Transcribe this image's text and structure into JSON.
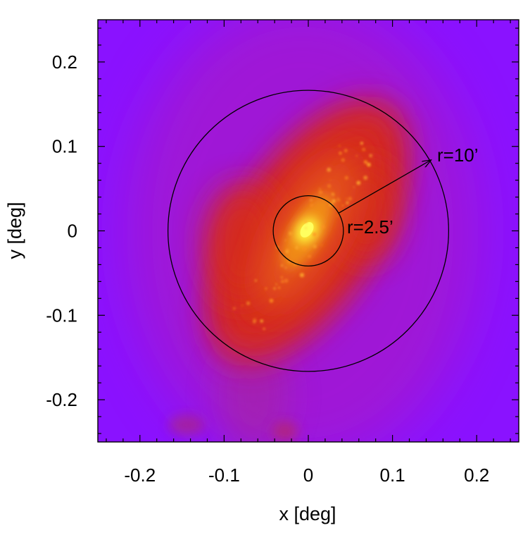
{
  "chart_data": {
    "type": "heatmap",
    "xlabel": "x [deg]",
    "ylabel": "y [deg]",
    "xlim": [
      -0.25,
      0.25
    ],
    "ylim": [
      -0.25,
      0.25
    ],
    "xticks": [
      {
        "value": -0.2,
        "label": "-0.2"
      },
      {
        "value": -0.1,
        "label": "-0.1"
      },
      {
        "value": 0,
        "label": "0"
      },
      {
        "value": 0.1,
        "label": "0.1"
      },
      {
        "value": 0.2,
        "label": "0.2"
      }
    ],
    "yticks": [
      {
        "value": 0.2,
        "label": "0.2"
      },
      {
        "value": 0.1,
        "label": "0.1"
      },
      {
        "value": 0,
        "label": "0"
      },
      {
        "value": -0.1,
        "label": "-0.1"
      },
      {
        "value": -0.2,
        "label": "-0.2"
      }
    ],
    "grid": false,
    "colormap": {
      "low": "#8a12ff",
      "mid": "#d8203a",
      "high": "#ffff40"
    },
    "circles": [
      {
        "cx": 0,
        "cy": 0,
        "r_deg": 0.0417,
        "label": "r=2.5’"
      },
      {
        "cx": 0,
        "cy": 0,
        "r_deg": 0.1667,
        "label": "r=10’"
      }
    ],
    "arrow": {
      "from": [
        0.036,
        0.021
      ],
      "to": [
        0.146,
        0.084
      ]
    },
    "emission": {
      "center": [
        0,
        0
      ],
      "major_axis_angle_deg": 57,
      "peak": [
        -0.003,
        0.002
      ]
    }
  }
}
